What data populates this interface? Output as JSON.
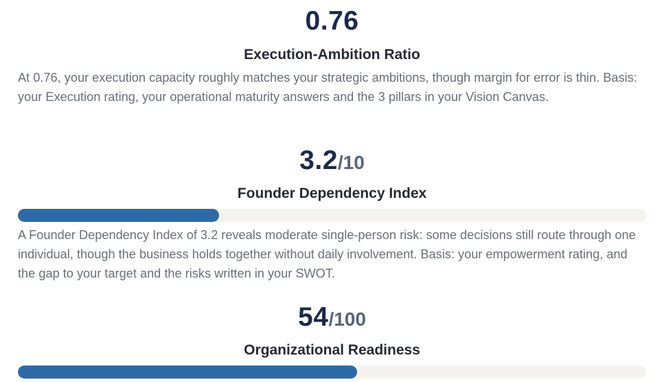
{
  "metrics": [
    {
      "value": "0.76",
      "denominator": "",
      "title": "Execution-Ambition Ratio",
      "description": "At 0.76, your execution capacity roughly matches your strategic ambitions, though margin for error is thin. Basis: your Execution rating, your operational maturity answers and the 3 pillars in your Vision Canvas."
    },
    {
      "value": "3.2",
      "denominator": "/10",
      "title": "Founder Dependency Index",
      "progress_fraction": 0.32,
      "description": "A Founder Dependency Index of 3.2 reveals moderate single-person risk: some decisions still route through one individual, though the business holds together without daily involvement. Basis: your empowerment rating, and the gap to your target and the risks written in your SWOT."
    },
    {
      "value": "54",
      "denominator": "/100",
      "title": "Organizational Readiness",
      "progress_fraction": 0.54
    }
  ],
  "colors": {
    "value_text": "#1b2a4a",
    "bar_fill": "#2e6aa5",
    "bar_track": "#f4f3ef",
    "body_text": "#6a6e76"
  }
}
